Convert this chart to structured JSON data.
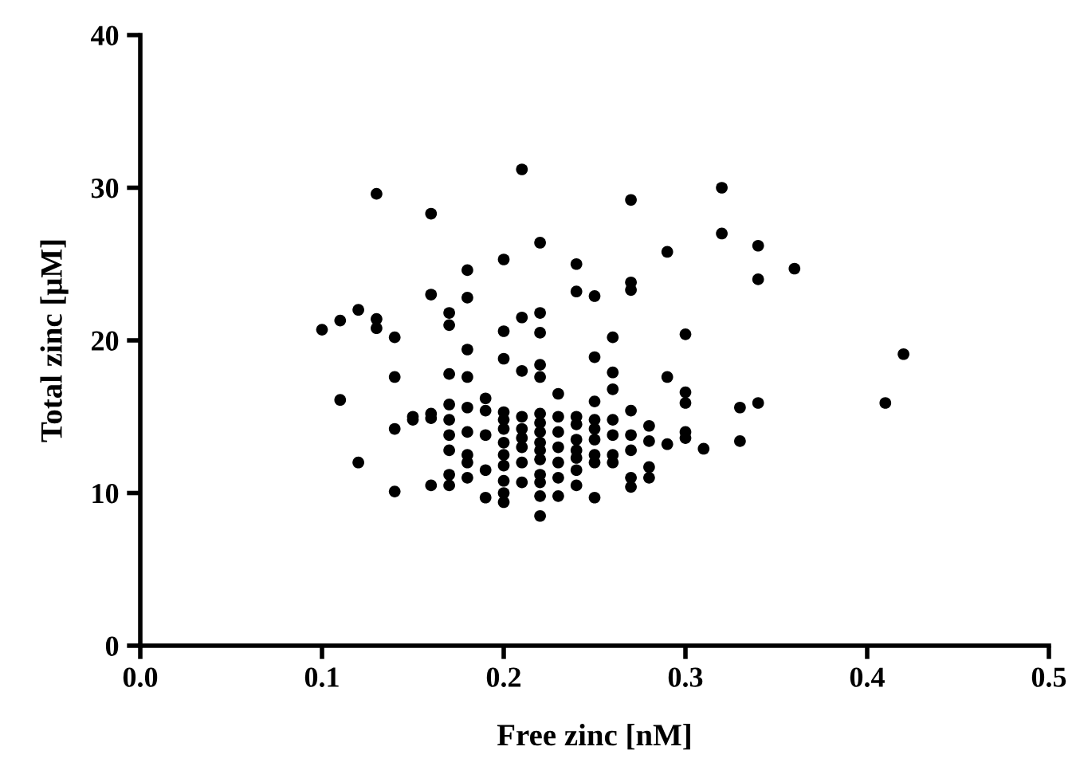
{
  "chart_data": {
    "type": "scatter",
    "xlabel": "Free zinc [nM]",
    "ylabel": "Total zinc [μM]",
    "xlim": [
      0.0,
      0.5
    ],
    "ylim": [
      0,
      40
    ],
    "xticks": [
      {
        "value": 0.0,
        "label": "0.0"
      },
      {
        "value": 0.1,
        "label": "0.1"
      },
      {
        "value": 0.2,
        "label": "0.2"
      },
      {
        "value": 0.3,
        "label": "0.3"
      },
      {
        "value": 0.4,
        "label": "0.4"
      },
      {
        "value": 0.5,
        "label": "0.5"
      }
    ],
    "yticks": [
      0,
      10,
      20,
      30,
      40
    ],
    "grid": false,
    "marker": "circle",
    "series": [
      {
        "color": "#000000",
        "x": [
          0.1,
          0.11,
          0.11,
          0.12,
          0.12,
          0.13,
          0.13,
          0.13,
          0.14,
          0.14,
          0.14,
          0.14,
          0.15,
          0.15,
          0.16,
          0.16,
          0.16,
          0.16,
          0.16,
          0.17,
          0.17,
          0.17,
          0.17,
          0.17,
          0.17,
          0.17,
          0.17,
          0.17,
          0.18,
          0.18,
          0.18,
          0.18,
          0.18,
          0.18,
          0.18,
          0.18,
          0.18,
          0.19,
          0.19,
          0.19,
          0.19,
          0.19,
          0.2,
          0.2,
          0.2,
          0.2,
          0.2,
          0.2,
          0.2,
          0.2,
          0.2,
          0.2,
          0.2,
          0.2,
          0.21,
          0.21,
          0.21,
          0.21,
          0.21,
          0.21,
          0.21,
          0.21,
          0.21,
          0.22,
          0.22,
          0.22,
          0.22,
          0.22,
          0.22,
          0.22,
          0.22,
          0.22,
          0.22,
          0.22,
          0.22,
          0.22,
          0.22,
          0.22,
          0.23,
          0.23,
          0.23,
          0.23,
          0.23,
          0.23,
          0.23,
          0.24,
          0.24,
          0.24,
          0.24,
          0.24,
          0.24,
          0.24,
          0.24,
          0.24,
          0.25,
          0.25,
          0.25,
          0.25,
          0.25,
          0.25,
          0.25,
          0.25,
          0.25,
          0.26,
          0.26,
          0.26,
          0.26,
          0.26,
          0.26,
          0.26,
          0.27,
          0.27,
          0.27,
          0.27,
          0.27,
          0.27,
          0.27,
          0.27,
          0.28,
          0.28,
          0.28,
          0.28,
          0.29,
          0.29,
          0.29,
          0.3,
          0.3,
          0.3,
          0.3,
          0.3,
          0.31,
          0.32,
          0.32,
          0.33,
          0.33,
          0.34,
          0.34,
          0.34,
          0.36,
          0.41,
          0.42
        ],
        "values": [
          20.7,
          21.3,
          16.1,
          22.0,
          12.0,
          29.6,
          21.4,
          20.8,
          20.2,
          17.6,
          14.2,
          10.1,
          15.0,
          14.8,
          28.3,
          23.0,
          15.2,
          14.9,
          10.5,
          21.8,
          21.0,
          17.8,
          15.8,
          14.8,
          13.8,
          12.8,
          11.2,
          10.5,
          24.6,
          22.8,
          19.4,
          17.6,
          15.6,
          14.0,
          12.5,
          12.0,
          11.0,
          16.2,
          15.4,
          13.8,
          11.5,
          9.7,
          25.3,
          20.6,
          18.8,
          15.3,
          14.8,
          14.2,
          13.3,
          12.5,
          11.8,
          10.8,
          10.0,
          9.4,
          31.2,
          21.5,
          18.0,
          15.0,
          14.2,
          13.6,
          13.0,
          12.0,
          10.7,
          26.4,
          21.8,
          20.5,
          18.4,
          17.6,
          15.2,
          14.6,
          14.0,
          13.3,
          12.8,
          12.2,
          11.2,
          10.7,
          9.8,
          8.5,
          16.5,
          15.0,
          14.0,
          13.0,
          12.0,
          11.0,
          9.8,
          25.0,
          23.2,
          15.0,
          14.5,
          13.5,
          12.8,
          12.3,
          11.5,
          10.5,
          22.9,
          18.9,
          16.0,
          14.8,
          14.2,
          13.5,
          12.5,
          12.0,
          9.7,
          20.2,
          17.9,
          16.8,
          14.8,
          13.8,
          12.5,
          12.0,
          29.2,
          23.8,
          23.3,
          15.4,
          13.8,
          12.8,
          11.0,
          10.4,
          14.4,
          13.4,
          11.7,
          11.0,
          25.8,
          17.6,
          13.2,
          20.4,
          16.6,
          15.9,
          14.0,
          13.6,
          12.9,
          30.0,
          27.0,
          15.6,
          13.4,
          26.2,
          24.0,
          15.9,
          24.7,
          15.9,
          19.1
        ]
      }
    ]
  }
}
